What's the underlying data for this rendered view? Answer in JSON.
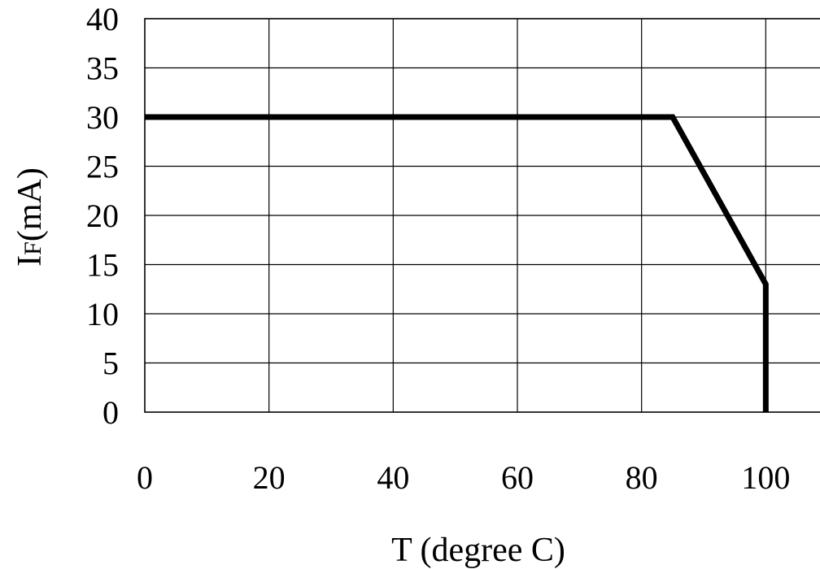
{
  "chart_data": {
    "type": "line",
    "xlabel": "T (degree C)",
    "ylabel": {
      "main": "I",
      "sub": "F",
      "unit": "(mA)"
    },
    "xlim": [
      0,
      120
    ],
    "ylim": [
      0,
      40
    ],
    "x_ticks": [
      0,
      20,
      40,
      60,
      80,
      100
    ],
    "y_ticks": [
      0,
      5,
      10,
      15,
      20,
      25,
      30,
      35,
      40
    ],
    "grid": true,
    "series": [
      {
        "x": [
          0,
          85,
          100,
          100
        ],
        "y": [
          30,
          30,
          13,
          0
        ],
        "color": "#000000"
      }
    ]
  }
}
